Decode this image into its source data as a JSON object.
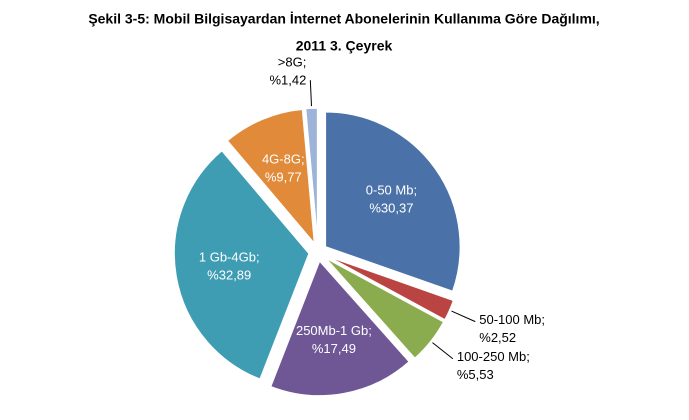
{
  "chart_data": {
    "type": "pie",
    "title": [
      "Şekil 3-5: Mobil Bilgisayardan İnternet Abonelerinin Kullanıma Göre Dağılımı,",
      "2011 3. Çeyrek"
    ],
    "categories": [
      "0-50 Mb;",
      "50-100 Mb;",
      "100-250 Mb;",
      "250Mb-1 Gb;",
      "1 Gb-4Gb;",
      "4G-8G;",
      ">8G;"
    ],
    "values": [
      30.37,
      2.52,
      5.53,
      17.49,
      32.89,
      9.77,
      1.42
    ],
    "value_labels": [
      "%30,37",
      "%2,52",
      "%5,53",
      "%17,49",
      "%32,89",
      "%9,77",
      "%1,42"
    ],
    "colors": [
      "#4a72a8",
      "#b94441",
      "#8aac4e",
      "#6f5796",
      "#3e9cb3",
      "#e08a3a",
      "#9db3d9"
    ]
  }
}
